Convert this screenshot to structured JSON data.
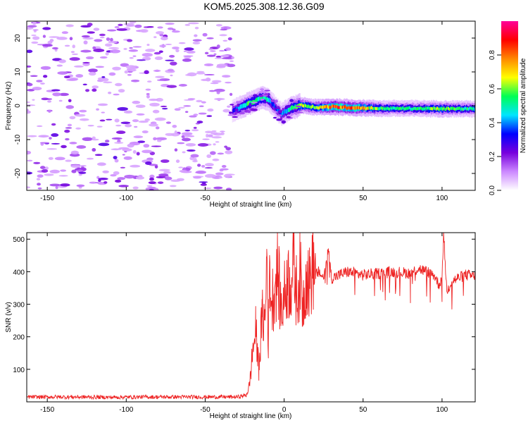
{
  "title": "KOM5.2025.308.12.36.G09",
  "chart_data": [
    {
      "type": "heatmap",
      "xlabel": "Height of straight line (km)",
      "ylabel": "Frequency (Hz)",
      "xlim": [
        -163,
        121
      ],
      "ylim": [
        -25,
        25
      ],
      "xticks": [
        "-150",
        "-100",
        "-50",
        "0",
        "50",
        "100"
      ],
      "yticks": [
        "-20",
        "-10",
        "0",
        "10",
        "20"
      ],
      "colorbar": {
        "label": "Normalized spectral amplitude",
        "range": [
          0,
          1
        ],
        "ticks": [
          "0.0",
          "0.2",
          "0.4",
          "0.6",
          "0.8"
        ],
        "colors": [
          "#ffffff",
          "#cc88ff",
          "#7700dd",
          "#0000ff",
          "#00e5ff",
          "#00ff55",
          "#ffff00",
          "#ff8800",
          "#ff0000",
          "#ff0099"
        ]
      },
      "ridge": {
        "x": [
          -33,
          -28,
          -22,
          -18,
          -14,
          -10,
          -6,
          -2,
          3,
          10,
          20,
          30,
          45,
          60,
          80,
          100,
          121
        ],
        "frequency": [
          -1.5,
          -0.5,
          0.8,
          1.5,
          2.5,
          1.8,
          -0.5,
          -2.5,
          -1.0,
          0.2,
          -0.5,
          -0.3,
          -0.6,
          -0.8,
          -0.8,
          -0.9,
          -0.9
        ],
        "amplitude": [
          0.3,
          0.45,
          0.55,
          0.5,
          0.55,
          0.45,
          0.35,
          0.35,
          0.5,
          0.65,
          0.6,
          0.85,
          0.8,
          0.55,
          0.5,
          0.6,
          0.5
        ]
      },
      "noise_region_x": [
        -163,
        -33
      ]
    },
    {
      "type": "line",
      "xlabel": "Height of straight line (km)",
      "ylabel": "SNR (v/v)",
      "xlim": [
        -163,
        121
      ],
      "ylim": [
        0,
        520
      ],
      "xticks": [
        "-150",
        "-100",
        "-50",
        "0",
        "50",
        "100"
      ],
      "yticks": [
        "100",
        "200",
        "300",
        "400",
        "500"
      ],
      "series": [
        {
          "color": "#ee2222",
          "x": [
            -163,
            -150,
            -130,
            -110,
            -90,
            -70,
            -50,
            -30,
            -24,
            -22,
            -20,
            -18,
            -16,
            -14,
            -12,
            -11,
            -10,
            -9,
            -8,
            -6,
            -4,
            -2,
            0,
            2,
            4,
            6,
            8,
            10,
            12,
            14,
            16,
            18,
            20,
            22,
            25,
            28,
            29,
            30,
            35,
            40,
            50,
            60,
            70,
            80,
            85,
            90,
            95,
            98,
            100,
            101,
            103,
            106,
            110,
            115,
            121
          ],
          "values": [
            15,
            15,
            15,
            14,
            15,
            15,
            15,
            15,
            20,
            50,
            150,
            220,
            100,
            260,
            250,
            470,
            180,
            420,
            300,
            350,
            400,
            280,
            320,
            380,
            360,
            420,
            330,
            390,
            300,
            400,
            360,
            420,
            390,
            400,
            380,
            470,
            430,
            380,
            390,
            400,
            390,
            395,
            400,
            395,
            410,
            400,
            390,
            360,
            380,
            520,
            340,
            370,
            380,
            390,
            385
          ]
        }
      ]
    }
  ]
}
